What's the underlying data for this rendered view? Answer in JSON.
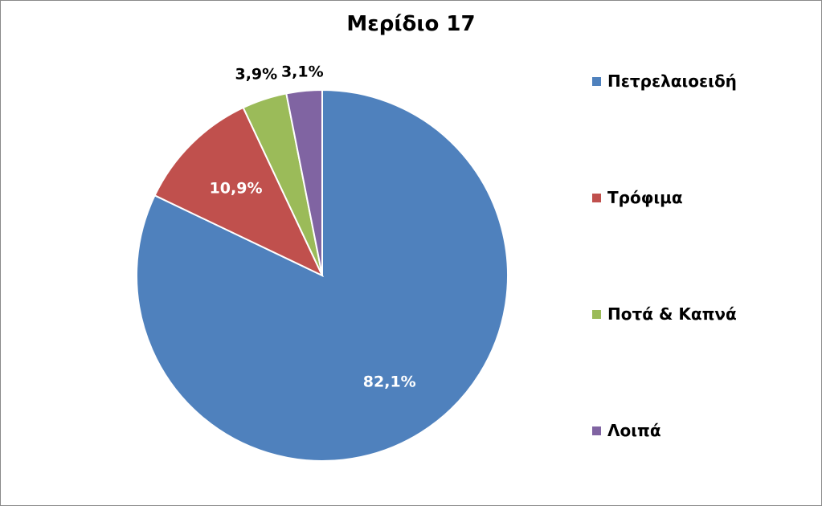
{
  "chart_data": {
    "type": "pie",
    "title": "Μερίδιο 17",
    "legend_position": "right",
    "slices": [
      {
        "name": "Πετρελαιοειδή",
        "value": 82.1,
        "label": "82,1%",
        "color": "#4F81BD"
      },
      {
        "name": "Τρόφιμα",
        "value": 10.9,
        "label": "10,9%",
        "color": "#C0504D"
      },
      {
        "name": "Ποτά & Καπνά",
        "value": 3.9,
        "label": "3,9%",
        "color": "#9BBB59"
      },
      {
        "name": "Λοιπά",
        "value": 3.1,
        "label": "3,1%",
        "color": "#8064A2"
      }
    ]
  }
}
